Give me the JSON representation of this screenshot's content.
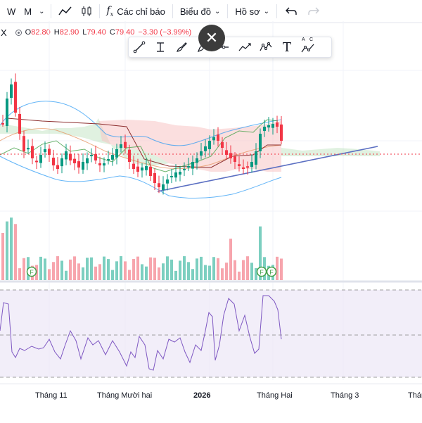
{
  "toolbar": {
    "intervals": [
      "W",
      "M"
    ],
    "indicators_label": "Các chỉ báo",
    "chart_menu_label": "Biểu đồ",
    "profile_menu_label": "Hồ sơ"
  },
  "legend": {
    "symbol_fragment": "X",
    "open_key": "O",
    "open": "82.80",
    "high_key": "H",
    "high": "82.90",
    "low_key": "L",
    "low": "79.40",
    "close_key": "C",
    "close": "79.40",
    "change": "−3.30 (−3.99%)"
  },
  "floating_toolbar": {
    "tools": [
      "trend-line-icon",
      "vertical-measure-icon",
      "brush-icon",
      "pen-icon",
      "horizontal-line-icon",
      "path-icon",
      "pattern-icon",
      "text-icon",
      "abc-pattern-icon"
    ],
    "text_tool_glyph": "T",
    "abc_labels": [
      "A",
      "C"
    ]
  },
  "markers": {
    "event_letter": "F"
  },
  "time_axis": {
    "labels": [
      {
        "text": "Tháng 11",
        "bold": false
      },
      {
        "text": "Tháng Mười hai",
        "bold": false
      },
      {
        "text": "2026",
        "bold": true
      },
      {
        "text": "Tháng Hai",
        "bold": false
      },
      {
        "text": "Tháng 3",
        "bold": false
      },
      {
        "text": "Tháng",
        "bold": false
      }
    ]
  },
  "colors": {
    "up": "#089981",
    "down": "#f23645",
    "bollinger": "#2196f3",
    "kumo_bull": "#a5d6a7",
    "kumo_bear": "#f7c5c5",
    "rsi_line": "#7e57c2",
    "rsi_band": "#ede7f6",
    "trendline": "#5b6fc2"
  }
}
